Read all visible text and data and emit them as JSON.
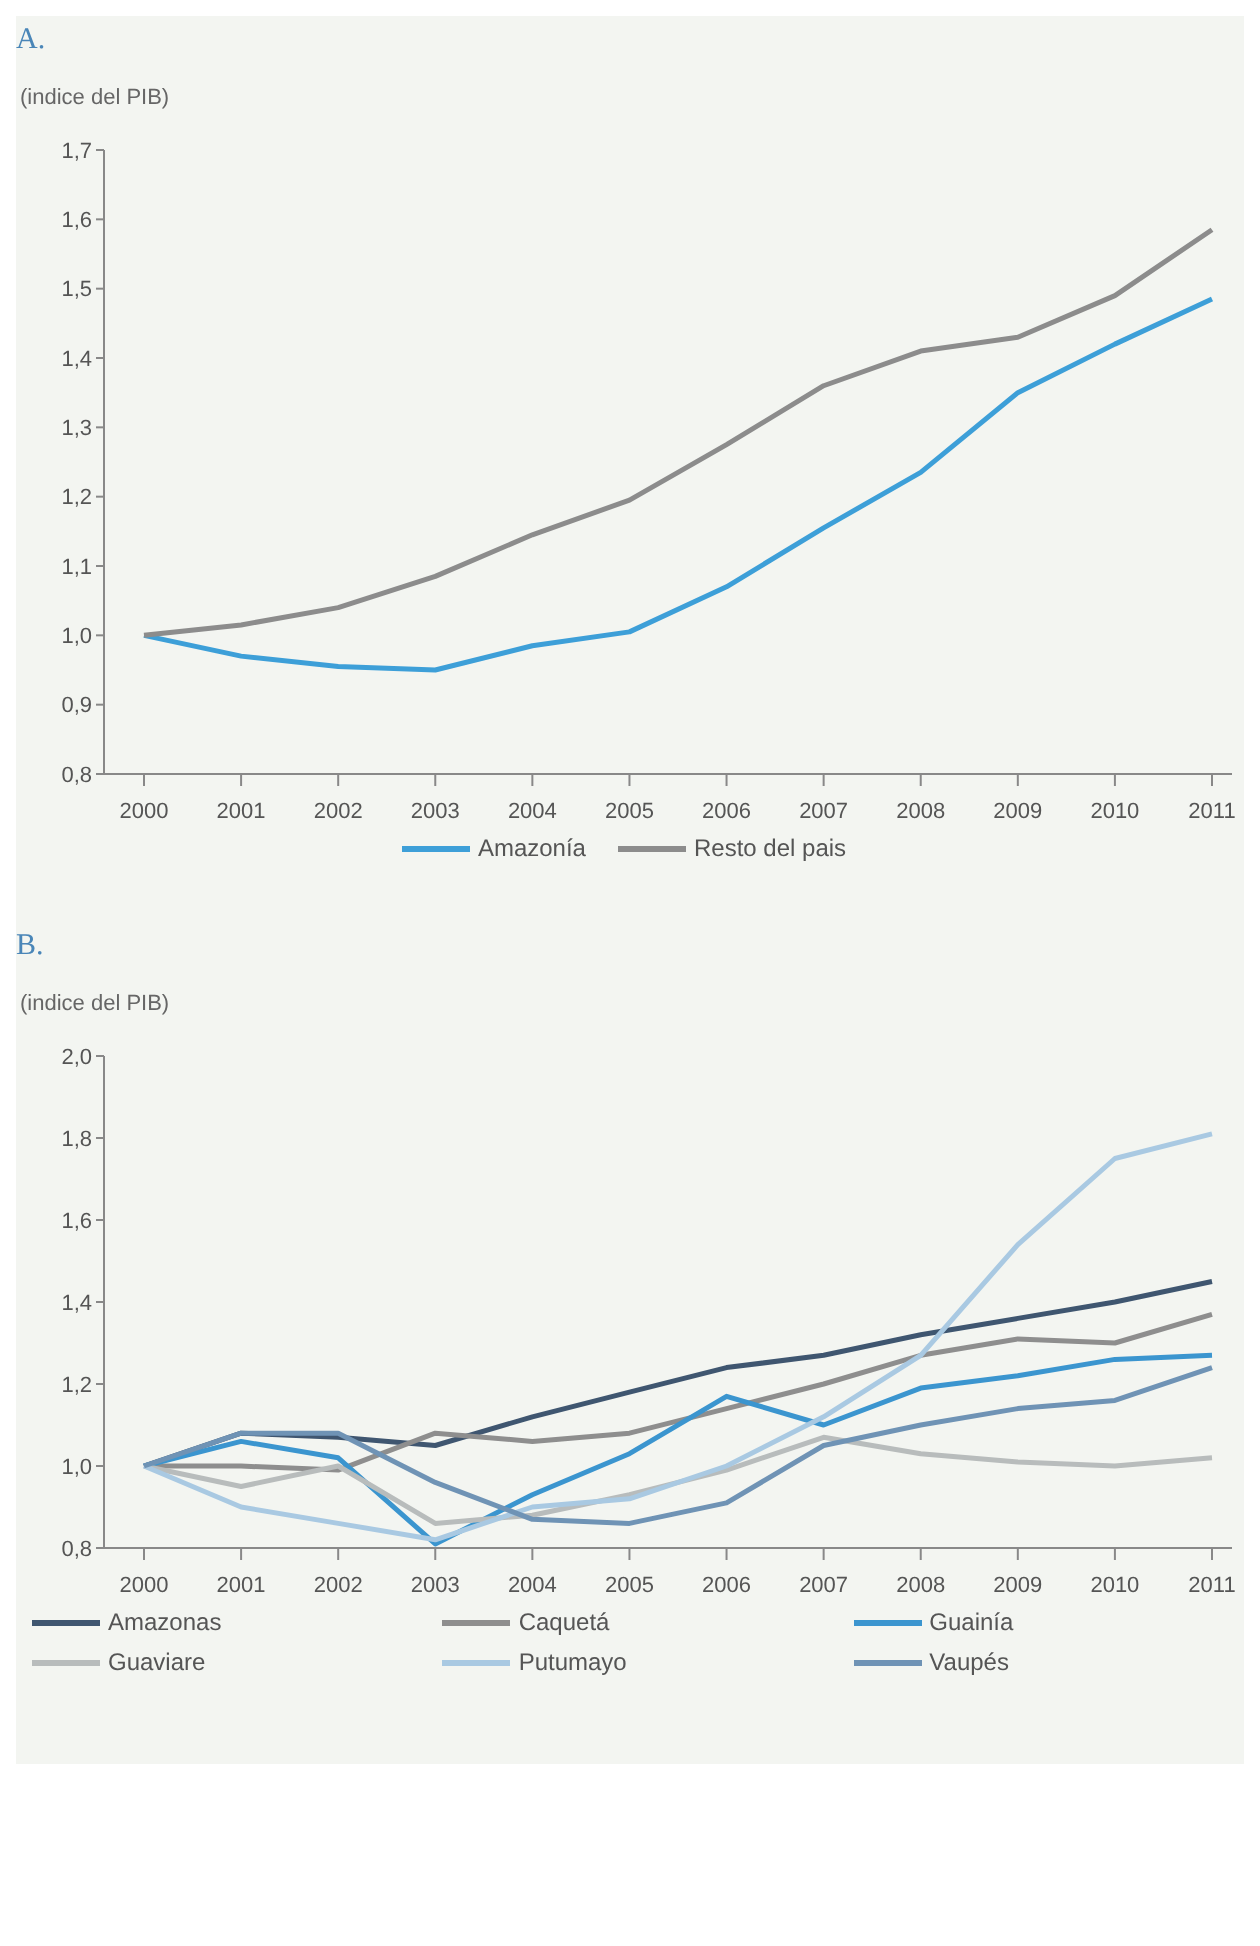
{
  "chart_data": [
    {
      "type": "line",
      "title": "A.",
      "ylabel": "(indice del PIB)",
      "categories": [
        "2000",
        "2001",
        "2002",
        "2003",
        "2004",
        "2005",
        "2006",
        "2007",
        "2008",
        "2009",
        "2010",
        "2011"
      ],
      "series": [
        {
          "name": "Amazonía",
          "color": "#3d9fd8",
          "values": [
            1.0,
            0.97,
            0.955,
            0.95,
            0.985,
            1.005,
            1.07,
            1.155,
            1.235,
            1.35,
            1.42,
            1.485
          ]
        },
        {
          "name": "Resto del pais",
          "color": "#8c8c8c",
          "values": [
            1.0,
            1.015,
            1.04,
            1.085,
            1.145,
            1.195,
            1.275,
            1.36,
            1.41,
            1.43,
            1.49,
            1.585
          ]
        }
      ],
      "ylim": [
        0.8,
        1.7
      ],
      "yticks": [
        {
          "value": 0.8,
          "label": "0,8"
        },
        {
          "value": 0.9,
          "label": "0,9"
        },
        {
          "value": 1.0,
          "label": "1,0"
        },
        {
          "value": 1.1,
          "label": "1,1"
        },
        {
          "value": 1.2,
          "label": "1,2"
        },
        {
          "value": 1.3,
          "label": "1,3"
        },
        {
          "value": 1.4,
          "label": "1,4"
        },
        {
          "value": 1.5,
          "label": "1,5"
        },
        {
          "value": 1.6,
          "label": "1,6"
        },
        {
          "value": 1.7,
          "label": "1,7"
        }
      ],
      "legend": "bottom",
      "grid": false
    },
    {
      "type": "line",
      "title": "B.",
      "ylabel": "(indice del PIB)",
      "categories": [
        "2000",
        "2001",
        "2002",
        "2003",
        "2004",
        "2005",
        "2006",
        "2007",
        "2008",
        "2009",
        "2010",
        "2011"
      ],
      "series": [
        {
          "name": "Amazonas",
          "color": "#3f5670",
          "values": [
            1.0,
            1.08,
            1.07,
            1.05,
            1.12,
            1.18,
            1.24,
            1.27,
            1.32,
            1.36,
            1.4,
            1.45
          ]
        },
        {
          "name": "Caquetá",
          "color": "#8e8e8e",
          "values": [
            1.0,
            1.0,
            0.99,
            1.08,
            1.06,
            1.08,
            1.14,
            1.2,
            1.27,
            1.31,
            1.3,
            1.37
          ]
        },
        {
          "name": "Guainía",
          "color": "#3b95cf",
          "values": [
            1.0,
            1.06,
            1.02,
            0.81,
            0.93,
            1.03,
            1.17,
            1.1,
            1.19,
            1.22,
            1.26,
            1.27
          ]
        },
        {
          "name": "Guaviare",
          "color": "#b8bcbc",
          "values": [
            1.0,
            0.95,
            1.0,
            0.86,
            0.88,
            0.93,
            0.99,
            1.07,
            1.03,
            1.01,
            1.0,
            1.02
          ]
        },
        {
          "name": "Putumayo",
          "color": "#a9c9e2",
          "values": [
            1.0,
            0.9,
            0.86,
            0.82,
            0.9,
            0.92,
            1.0,
            1.12,
            1.27,
            1.54,
            1.75,
            1.81
          ]
        },
        {
          "name": "Vaupés",
          "color": "#6f93b5",
          "values": [
            1.0,
            1.08,
            1.08,
            0.96,
            0.87,
            0.86,
            0.91,
            1.05,
            1.1,
            1.14,
            1.16,
            1.24
          ]
        }
      ],
      "ylim": [
        0.8,
        2.0
      ],
      "yticks": [
        {
          "value": 0.8,
          "label": "0,8"
        },
        {
          "value": 1.0,
          "label": "1,0"
        },
        {
          "value": 1.2,
          "label": "1,2"
        },
        {
          "value": 1.4,
          "label": "1,4"
        },
        {
          "value": 1.6,
          "label": "1,6"
        },
        {
          "value": 1.8,
          "label": "1,8"
        },
        {
          "value": 2.0,
          "label": "2,0"
        }
      ],
      "legend": "bottom",
      "grid": false
    }
  ]
}
